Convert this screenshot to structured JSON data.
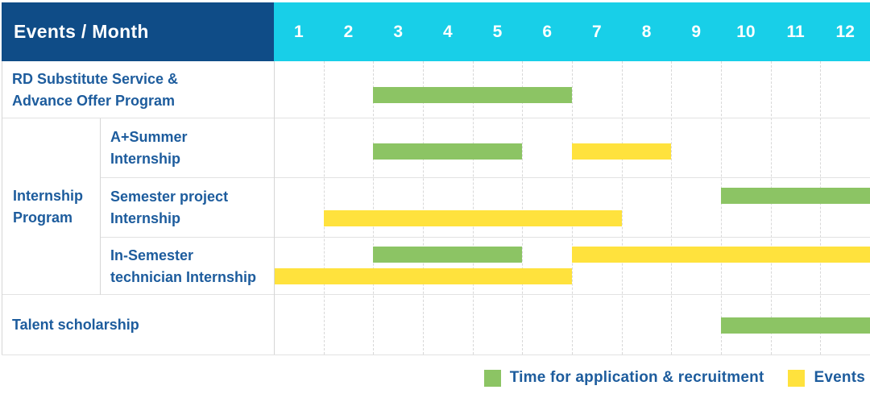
{
  "header": {
    "title": "Events / Month",
    "months": [
      "1",
      "2",
      "3",
      "4",
      "5",
      "6",
      "7",
      "8",
      "9",
      "10",
      "11",
      "12"
    ]
  },
  "colors": {
    "header_bg": "#0f4c87",
    "months_bg": "#18cfe8",
    "label_text": "#1d5c9d",
    "green": "#8cc464",
    "yellow": "#ffe23d",
    "grid_dashed": "#d8d8d8",
    "divider": "#e2e2e2"
  },
  "legend": [
    {
      "color_key": "green",
      "label": "Time for application & recruitment"
    },
    {
      "color_key": "yellow",
      "label": "Events"
    }
  ],
  "chart_data": {
    "type": "bar",
    "subtype": "gantt-timeline",
    "title": "Events / Month",
    "xlabel": "Month",
    "x_axis": {
      "ticks": [
        "1",
        "2",
        "3",
        "4",
        "5",
        "6",
        "7",
        "8",
        "9",
        "10",
        "11",
        "12"
      ],
      "range": [
        1,
        12
      ]
    },
    "grid": true,
    "legend_position": "bottom-right",
    "group_label": "Internship Program",
    "group_label_lines": [
      "Internship",
      "Program"
    ],
    "rows": [
      {
        "label": "RD Substitute Service & Advance Offer Program",
        "label_lines": [
          "RD Substitute Service &",
          "Advance Offer Program"
        ],
        "group": null,
        "bars": [
          {
            "series": "Time for application & recruitment",
            "color_key": "green",
            "start_month": 3,
            "end_month": 6,
            "lane": "single"
          }
        ]
      },
      {
        "label": "A+Summer Internship",
        "label_lines": [
          "A+Summer",
          "Internship"
        ],
        "group": "Internship Program",
        "bars": [
          {
            "series": "Time for application & recruitment",
            "color_key": "green",
            "start_month": 3,
            "end_month": 5,
            "lane": "single"
          },
          {
            "series": "Events",
            "color_key": "yellow",
            "start_month": 7,
            "end_month": 8,
            "lane": "single"
          }
        ]
      },
      {
        "label": "Semester project Internship",
        "label_lines": [
          "Semester project",
          "Internship"
        ],
        "group": "Internship Program",
        "bars": [
          {
            "series": "Time for application & recruitment",
            "color_key": "green",
            "start_month": 10,
            "end_month": 12,
            "lane": "top"
          },
          {
            "series": "Events",
            "color_key": "yellow",
            "start_month": 2,
            "end_month": 7,
            "lane": "bottom"
          }
        ]
      },
      {
        "label": "In-Semester technician Internship",
        "label_lines": [
          "In-Semester",
          "technician Internship"
        ],
        "group": "Internship Program",
        "bars": [
          {
            "series": "Time for application & recruitment",
            "color_key": "green",
            "start_month": 3,
            "end_month": 5,
            "lane": "top"
          },
          {
            "series": "Events",
            "color_key": "yellow",
            "start_month": 7,
            "end_month": 12,
            "lane": "top"
          },
          {
            "series": "Events",
            "color_key": "yellow",
            "start_month": 1,
            "end_month": 6,
            "lane": "bottom"
          }
        ]
      },
      {
        "label": "Talent scholarship",
        "label_lines": [
          "Talent scholarship"
        ],
        "group": null,
        "bars": [
          {
            "series": "Time for application & recruitment",
            "color_key": "green",
            "start_month": 10,
            "end_month": 12,
            "lane": "single"
          }
        ]
      }
    ]
  }
}
